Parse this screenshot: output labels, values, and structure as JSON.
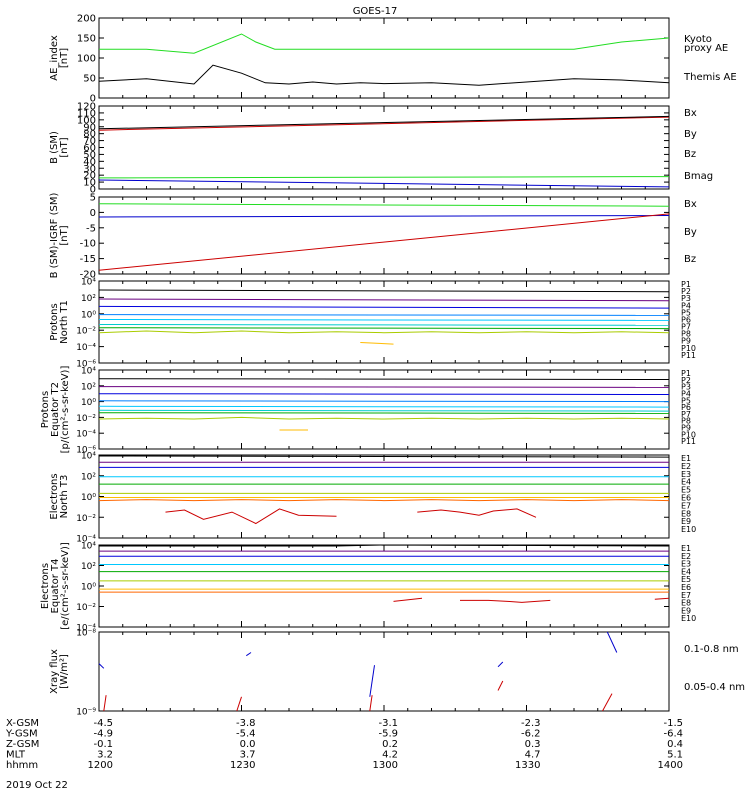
{
  "title": "GOES-17",
  "date_label": "2019 Oct 22",
  "colors": {
    "black": "#000000",
    "green": "#22dd22",
    "blue": "#0000cc",
    "red": "#cc0000",
    "P1": "#000000",
    "P2": "#6a0080",
    "P3": "#0000dd",
    "P4": "#0080ff",
    "P5": "#00c8ff",
    "P6": "#00cccc",
    "P7": "#00aa00",
    "P8": "#aacc00",
    "P9": "#ffbb00",
    "P10": "#ff6600",
    "P11": "#cc0000"
  },
  "x_axis": {
    "tick_times": [
      "1200",
      "1230",
      "1300",
      "1330",
      "1400"
    ],
    "rows": [
      {
        "label": "X-GSM",
        "values": [
          "-4.5",
          "-3.8",
          "-3.1",
          "-2.3",
          "-1.5"
        ]
      },
      {
        "label": "Y-GSM",
        "values": [
          "-4.9",
          "-5.4",
          "-5.9",
          "-6.2",
          "-6.4"
        ]
      },
      {
        "label": "Z-GSM",
        "values": [
          "-0.1",
          "0.0",
          "0.2",
          "0.3",
          "0.4"
        ]
      },
      {
        "label": "MLT",
        "values": [
          "3.2",
          "3.7",
          "4.2",
          "4.7",
          "5.1"
        ]
      },
      {
        "label": "hhmm",
        "values": [
          "1200",
          "1230",
          "1300",
          "1330",
          "1400"
        ]
      }
    ]
  },
  "chart_data": [
    {
      "type": "line",
      "ylabel": [
        "AE_index",
        "[nT]"
      ],
      "ylim": [
        0,
        200
      ],
      "yticks": [
        "0",
        "50",
        "100",
        "150",
        "200"
      ],
      "series": [
        {
          "name": "Kyoto proxy AE",
          "color": "green",
          "x": [
            0,
            10,
            20,
            30,
            33,
            37,
            40,
            45,
            50,
            55,
            60,
            70,
            80,
            90,
            100,
            110,
            120
          ],
          "y": [
            122,
            122,
            112,
            160,
            140,
            122,
            122,
            122,
            122,
            122,
            122,
            122,
            122,
            122,
            122,
            140,
            150
          ]
        },
        {
          "name": "Themis AE",
          "color": "black",
          "x": [
            0,
            10,
            20,
            24,
            30,
            35,
            40,
            45,
            50,
            55,
            60,
            70,
            80,
            90,
            100,
            110,
            120
          ],
          "y": [
            42,
            48,
            35,
            82,
            62,
            38,
            35,
            40,
            35,
            38,
            36,
            38,
            32,
            40,
            48,
            45,
            38
          ]
        }
      ]
    },
    {
      "type": "line",
      "ylabel": [
        "B (SM)",
        "[nT]"
      ],
      "ylim": [
        0,
        120
      ],
      "yticks": [
        "0",
        "10",
        "20",
        "30",
        "40",
        "50",
        "60",
        "70",
        "80",
        "90",
        "100",
        "110",
        "120"
      ],
      "series": [
        {
          "name": "Bx",
          "color": "blue",
          "x": [
            0,
            120
          ],
          "y": [
            13,
            3
          ]
        },
        {
          "name": "By",
          "color": "green",
          "x": [
            0,
            120
          ],
          "y": [
            16,
            18
          ]
        },
        {
          "name": "Bz",
          "color": "red",
          "x": [
            0,
            120
          ],
          "y": [
            85,
            104
          ]
        },
        {
          "name": "Bmag",
          "color": "black",
          "x": [
            0,
            120
          ],
          "y": [
            87,
            105
          ]
        }
      ]
    },
    {
      "type": "line",
      "ylabel": [
        "B (SM)-IGRF (SM)",
        "[nT]"
      ],
      "ylim": [
        -20,
        5
      ],
      "yticks": [
        "-20",
        "-15",
        "-10",
        "-5",
        "0",
        "5"
      ],
      "series": [
        {
          "name": "Bx",
          "color": "blue",
          "x": [
            0,
            120
          ],
          "y": [
            -1.5,
            -1.0
          ]
        },
        {
          "name": "By",
          "color": "green",
          "x": [
            0,
            120
          ],
          "y": [
            2.8,
            2.0
          ]
        },
        {
          "name": "Bz",
          "color": "red",
          "x": [
            0,
            120
          ],
          "y": [
            -18.8,
            -0.5
          ]
        }
      ]
    },
    {
      "type": "line",
      "log": true,
      "ylabel": [
        "Protons",
        "North T1"
      ],
      "ylim": [
        -6,
        4
      ],
      "yticks": [
        "10⁻⁶",
        "10⁻⁴",
        "10⁻²",
        "10⁰",
        "10²",
        "10⁴"
      ],
      "channel_labels": [
        "P1",
        "P2",
        "P3",
        "P4",
        "P5",
        "P6",
        "P7",
        "P8",
        "P9",
        "P10",
        "P11"
      ],
      "series": [
        {
          "name": "P1",
          "color": "P1",
          "x": [
            0,
            120
          ],
          "y": [
            2.9,
            2.7
          ]
        },
        {
          "name": "P2",
          "color": "P2",
          "x": [
            0,
            120
          ],
          "y": [
            1.8,
            1.6
          ]
        },
        {
          "name": "P3",
          "color": "P3",
          "x": [
            0,
            120
          ],
          "y": [
            0.9,
            0.7
          ]
        },
        {
          "name": "P4",
          "color": "P4",
          "x": [
            0,
            120
          ],
          "y": [
            -0.1,
            -0.2
          ]
        },
        {
          "name": "P5",
          "color": "P5",
          "x": [
            0,
            120
          ],
          "y": [
            -0.7,
            -0.8
          ]
        },
        {
          "name": "P6",
          "color": "P6",
          "x": [
            0,
            120
          ],
          "y": [
            -1.3,
            -1.4
          ]
        },
        {
          "name": "P7",
          "color": "P7",
          "x": [
            0,
            120
          ],
          "y": [
            -1.7,
            -1.8
          ]
        },
        {
          "name": "P8",
          "color": "P8",
          "x": [
            0,
            10,
            20,
            30,
            40,
            50,
            60,
            70,
            80,
            90,
            100,
            110,
            120
          ],
          "y": [
            -2.3,
            -2.1,
            -2.3,
            -2.1,
            -2.3,
            -2.2,
            -2.3,
            -2.2,
            -2.3,
            -2.2,
            -2.3,
            -2.2,
            -2.3
          ]
        },
        {
          "name": "P9",
          "color": "P9",
          "x": [
            55,
            62
          ],
          "y": [
            -3.5,
            -3.7
          ]
        }
      ]
    },
    {
      "type": "line",
      "log": true,
      "ylabel": [
        "Protons",
        "Equator T2",
        "[p/(cm²-s-sr-keV)]"
      ],
      "ylim": [
        -6,
        4
      ],
      "yticks": [
        "10⁻⁶",
        "10⁻⁴",
        "10⁻²",
        "10⁰",
        "10²",
        "10⁴"
      ],
      "channel_labels": [
        "P1",
        "P2",
        "P3",
        "P4",
        "P5",
        "P6",
        "P7",
        "P8",
        "P9",
        "P10",
        "P11"
      ],
      "series": [
        {
          "name": "P1",
          "color": "P1",
          "x": [
            0,
            120
          ],
          "y": [
            2.9,
            2.8
          ]
        },
        {
          "name": "P2",
          "color": "P2",
          "x": [
            0,
            120
          ],
          "y": [
            1.9,
            1.8
          ]
        },
        {
          "name": "P3",
          "color": "P3",
          "x": [
            0,
            120
          ],
          "y": [
            1.0,
            0.9
          ]
        },
        {
          "name": "P4",
          "color": "P4",
          "x": [
            0,
            120
          ],
          "y": [
            0.1,
            0.0
          ]
        },
        {
          "name": "P5",
          "color": "P5",
          "x": [
            0,
            120
          ],
          "y": [
            -0.6,
            -0.7
          ]
        },
        {
          "name": "P6",
          "color": "P6",
          "x": [
            0,
            120
          ],
          "y": [
            -1.1,
            -1.2
          ]
        },
        {
          "name": "P7",
          "color": "P7",
          "x": [
            0,
            120
          ],
          "y": [
            -1.4,
            -1.5
          ]
        },
        {
          "name": "P8",
          "color": "P8",
          "x": [
            0,
            10,
            20,
            30,
            40,
            50,
            60,
            70,
            80,
            90,
            100,
            110,
            120
          ],
          "y": [
            -2.2,
            -2.1,
            -2.2,
            -2.0,
            -2.2,
            -2.1,
            -2.2,
            -2.1,
            -2.2,
            -2.1,
            -2.2,
            -2.1,
            -2.2
          ]
        },
        {
          "name": "P9",
          "color": "P9",
          "x": [
            38,
            44
          ],
          "y": [
            -3.6,
            -3.6
          ]
        }
      ]
    },
    {
      "type": "line",
      "log": true,
      "ylabel": [
        "Electrons",
        "North T3"
      ],
      "ylim": [
        -4,
        4
      ],
      "yticks": [
        "10⁻⁴",
        "10⁻²",
        "10⁰",
        "10²",
        "10⁴"
      ],
      "channel_labels": [
        "E1",
        "E2",
        "E3",
        "E4",
        "E5",
        "E6",
        "E7",
        "E8",
        "E9",
        "E10"
      ],
      "series": [
        {
          "name": "E1",
          "color": "P1",
          "x": [
            0,
            120
          ],
          "y": [
            3.9,
            3.8
          ]
        },
        {
          "name": "E2",
          "color": "P2",
          "x": [
            0,
            120
          ],
          "y": [
            3.3,
            3.3
          ]
        },
        {
          "name": "E3",
          "color": "P3",
          "x": [
            0,
            120
          ],
          "y": [
            2.8,
            2.8
          ]
        },
        {
          "name": "E4",
          "color": "P5",
          "x": [
            0,
            120
          ],
          "y": [
            1.9,
            1.9
          ]
        },
        {
          "name": "E5",
          "color": "P7",
          "x": [
            0,
            120
          ],
          "y": [
            1.2,
            1.2
          ]
        },
        {
          "name": "E6",
          "color": "P8",
          "x": [
            0,
            120
          ],
          "y": [
            0.3,
            0.3
          ]
        },
        {
          "name": "E7",
          "color": "P9",
          "x": [
            0,
            120
          ],
          "y": [
            -0.1,
            -0.1
          ]
        },
        {
          "name": "E8",
          "color": "P10",
          "x": [
            0,
            10,
            20,
            30,
            40,
            50,
            60,
            70,
            80,
            90,
            100,
            110,
            120
          ],
          "y": [
            -0.4,
            -0.3,
            -0.4,
            -0.3,
            -0.4,
            -0.3,
            -0.4,
            -0.3,
            -0.4,
            -0.3,
            -0.4,
            -0.3,
            -0.4
          ]
        },
        {
          "name": "E9",
          "color": "red",
          "x": [
            14,
            18,
            22,
            28,
            33,
            38,
            42,
            50
          ],
          "y": [
            -1.5,
            -1.3,
            -2.2,
            -1.5,
            -2.6,
            -1.2,
            -1.8,
            -1.9
          ]
        },
        {
          "name": "E9b",
          "color": "red",
          "x": [
            67,
            72,
            76,
            80,
            83,
            88,
            92
          ],
          "y": [
            -1.5,
            -1.3,
            -1.5,
            -1.8,
            -1.4,
            -1.2,
            -2.0
          ]
        }
      ]
    },
    {
      "type": "line",
      "log": true,
      "ylabel": [
        "Electrons",
        "Equator T4",
        "[e/(cm²-s-sr-keV)]"
      ],
      "ylim": [
        -4,
        4
      ],
      "yticks": [
        "10⁻⁴",
        "10⁻²",
        "10⁰",
        "10²",
        "10⁴"
      ],
      "channel_labels": [
        "E1",
        "E2",
        "E3",
        "E4",
        "E5",
        "E6",
        "E7",
        "E8",
        "E9",
        "E10"
      ],
      "series": [
        {
          "name": "E1",
          "color": "P1",
          "x": [
            0,
            50,
            60,
            120
          ],
          "y": [
            3.9,
            3.9,
            4.0,
            3.9
          ]
        },
        {
          "name": "E2",
          "color": "P2",
          "x": [
            0,
            120
          ],
          "y": [
            3.4,
            3.4
          ]
        },
        {
          "name": "E3",
          "color": "P3",
          "x": [
            0,
            120
          ],
          "y": [
            2.9,
            2.9
          ]
        },
        {
          "name": "E4",
          "color": "P5",
          "x": [
            0,
            120
          ],
          "y": [
            2.1,
            2.1
          ]
        },
        {
          "name": "E5",
          "color": "P7",
          "x": [
            0,
            120
          ],
          "y": [
            1.4,
            1.4
          ]
        },
        {
          "name": "E6",
          "color": "P8",
          "x": [
            0,
            120
          ],
          "y": [
            0.5,
            0.5
          ]
        },
        {
          "name": "E7",
          "color": "P9",
          "x": [
            0,
            120
          ],
          "y": [
            -0.3,
            -0.3
          ]
        },
        {
          "name": "E8",
          "color": "P10",
          "x": [
            0,
            120
          ],
          "y": [
            -0.6,
            -0.6
          ]
        },
        {
          "name": "E9",
          "color": "red",
          "x": [
            62,
            68
          ],
          "y": [
            -1.5,
            -1.2
          ]
        },
        {
          "name": "E9b",
          "color": "red",
          "x": [
            76,
            82,
            86,
            89,
            95
          ],
          "y": [
            -1.4,
            -1.4,
            -1.5,
            -1.6,
            -1.4
          ]
        },
        {
          "name": "E9c",
          "color": "red",
          "x": [
            117,
            120
          ],
          "y": [
            -1.3,
            -1.2
          ]
        }
      ]
    },
    {
      "type": "line",
      "log": true,
      "ylabel": [
        "Xray flux",
        "[W/m²]"
      ],
      "ylim": [
        -9,
        -8
      ],
      "yticks": [
        "10⁻⁹",
        "10⁻⁸"
      ],
      "series": [
        {
          "name": "0.1-0.8 nm",
          "color": "red",
          "x": [
            1,
            1.5
          ],
          "y": [
            -9,
            -8.8
          ]
        },
        {
          "name": "0.1-0.8 nm b",
          "color": "red",
          "x": [
            29,
            30
          ],
          "y": [
            -9,
            -8.82
          ]
        },
        {
          "name": "0.1-0.8 nm c",
          "color": "red",
          "x": [
            57,
            57.5
          ],
          "y": [
            -9,
            -8.8
          ]
        },
        {
          "name": "0.1-0.8 nm d",
          "color": "red",
          "x": [
            84,
            85
          ],
          "y": [
            -8.74,
            -8.62
          ]
        },
        {
          "name": "0.1-0.8 nm e",
          "color": "red",
          "x": [
            106,
            108
          ],
          "y": [
            -9,
            -8.78
          ]
        },
        {
          "name": "0.05-0.4 nm",
          "color": "blue",
          "x": [
            0,
            1
          ],
          "y": [
            -8.4,
            -8.46
          ]
        },
        {
          "name": "0.05-0.4 nm b",
          "color": "blue",
          "x": [
            31,
            32
          ],
          "y": [
            -8.3,
            -8.26
          ]
        },
        {
          "name": "0.05-0.4 nm c",
          "color": "blue",
          "x": [
            57,
            58
          ],
          "y": [
            -8.82,
            -8.42
          ]
        },
        {
          "name": "0.05-0.4 nm d",
          "color": "blue",
          "x": [
            84,
            85
          ],
          "y": [
            -8.44,
            -8.38
          ]
        },
        {
          "name": "0.05-0.4 nm e",
          "color": "blue",
          "x": [
            107,
            109
          ],
          "y": [
            -8.0,
            -8.26
          ]
        }
      ]
    }
  ],
  "right_labels": [
    [
      {
        "text": "Kyoto",
        "color": "green"
      },
      {
        "text": "proxy AE",
        "color": "green"
      },
      {
        "text": "Themis AE",
        "color": "black"
      }
    ],
    [
      {
        "text": "Bx",
        "color": "blue"
      },
      {
        "text": "By",
        "color": "green"
      },
      {
        "text": "Bz",
        "color": "red"
      },
      {
        "text": "Bmag",
        "color": "black"
      }
    ],
    [
      {
        "text": "Bx",
        "color": "blue"
      },
      {
        "text": "By",
        "color": "green"
      },
      {
        "text": "Bz",
        "color": "red"
      }
    ],
    [],
    [],
    [],
    [],
    [
      {
        "text": "0.1-0.8 nm",
        "color": "red"
      },
      {
        "text": "0.05-0.4 nm",
        "color": "blue"
      }
    ]
  ],
  "channel_colors": [
    "P1",
    "P2",
    "P3",
    "P4",
    "P5",
    "P6",
    "P7",
    "P8",
    "P9",
    "P10",
    "P11"
  ]
}
